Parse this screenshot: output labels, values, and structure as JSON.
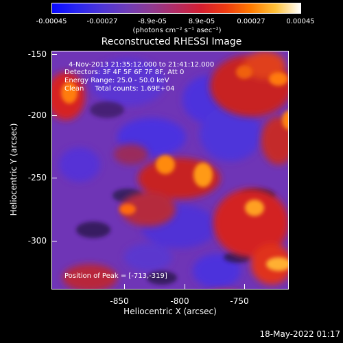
{
  "colorbar": {
    "ticks": [
      "-0.00045",
      "-0.00027",
      "-8.9e-05",
      "8.9e-05",
      "0.00027",
      "0.00045"
    ],
    "unit": "(photons cm⁻² s⁻¹ asec⁻²)"
  },
  "title": "Reconstructed RHESSI Image",
  "annotations": {
    "time_range": "4-Nov-2013 21:35:12.000 to 21:41:12.000",
    "detectors": "Detectors: 3F 4F 5F 6F 7F 8F, Att 0",
    "energy": "Energy Range: 25.0 - 50.0 keV",
    "clean": "Clean     Total counts: 1.69E+04",
    "peak": "Position of Peak = [-713,-319]"
  },
  "axes": {
    "x_label": "Heliocentric X (arcsec)",
    "y_label": "Heliocentric Y (arcsec)",
    "x_ticks": [
      "-850",
      "-800",
      "-750"
    ],
    "y_ticks": [
      "-150",
      "-200",
      "-250",
      "-300"
    ]
  },
  "footer": {
    "timestamp": "18-May-2022 01:17"
  }
}
